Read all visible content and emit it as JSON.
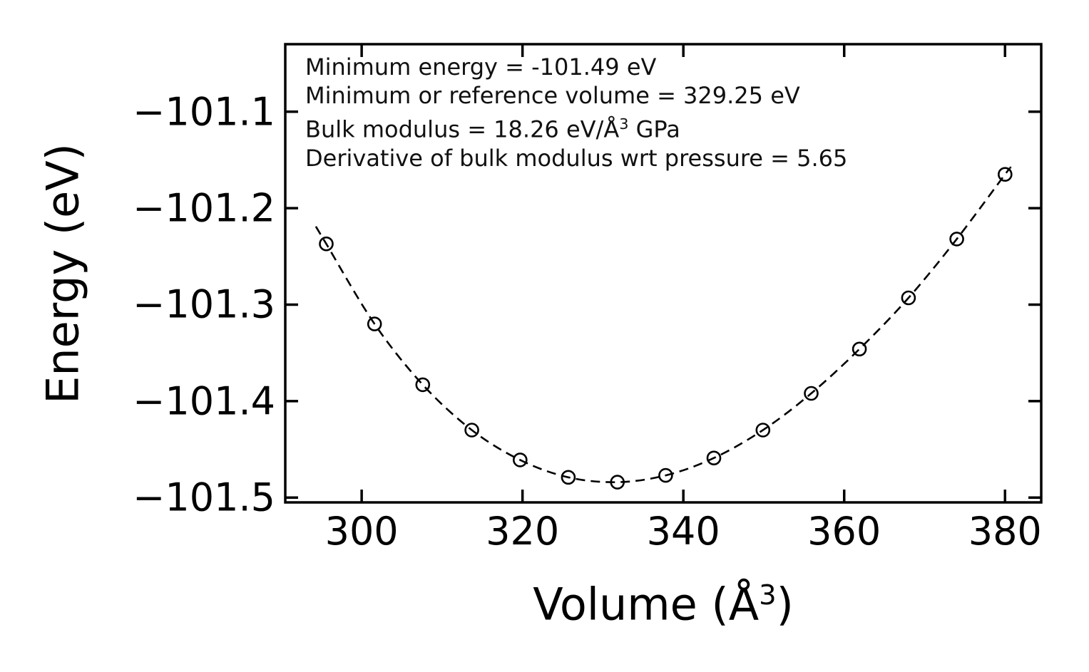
{
  "colors": {
    "background": "#ffffff",
    "axis": "#000000",
    "line": "#000000",
    "marker_edge": "#000000",
    "text": "#111111"
  },
  "chart_data": {
    "type": "line",
    "title": "",
    "xlabel": "Volume (Å³)",
    "xlabel_parts": {
      "prefix": "Volume (Å",
      "sup": "3",
      "suffix": ")"
    },
    "ylabel": "Energy (eV)",
    "xlim": [
      290.5,
      384.5
    ],
    "ylim": [
      -101.505,
      -101.03
    ],
    "grid": false,
    "legend_position": "none",
    "xticks": {
      "values": [
        300,
        320,
        340,
        360,
        380
      ],
      "labels": [
        "300",
        "320",
        "340",
        "360",
        "380"
      ]
    },
    "yticks": {
      "values": [
        -101.1,
        -101.2,
        -101.3,
        -101.4,
        -101.5
      ],
      "labels": [
        "−101.1",
        "−101.2",
        "−101.3",
        "−101.4",
        "−101.5"
      ]
    },
    "annotation": {
      "line1": "Minimum energy = -101.49 eV",
      "line2": "Minimum or reference volume = 329.25 eV",
      "line3_prefix": "Bulk modulus = 18.26 eV/Å",
      "line3_sup": "3",
      "line3_suffix": " GPa",
      "line4": "Derivative of bulk modulus wrt pressure = 5.65"
    },
    "series": [
      {
        "name": "calculated-energy-points",
        "marker": "open-circle",
        "line_style": "dashed",
        "x": [
          295.6,
          301.6,
          307.6,
          313.7,
          319.7,
          325.7,
          331.8,
          337.8,
          343.8,
          349.9,
          355.9,
          361.9,
          368.0,
          374.0,
          380.0
        ],
        "y": [
          -101.237,
          -101.32,
          -101.383,
          -101.43,
          -101.461,
          -101.479,
          -101.484,
          -101.477,
          -101.459,
          -101.43,
          -101.392,
          -101.346,
          -101.293,
          -101.232,
          -101.165
        ]
      }
    ],
    "fit_curve": {
      "name": "equation-of-state-fit",
      "x": [
        294.3,
        295.6,
        301.6,
        307.6,
        313.7,
        319.7,
        325.7,
        331.8,
        337.8,
        343.8,
        349.9,
        355.9,
        361.9,
        368.0,
        374.0,
        380.0,
        380.6
      ],
      "y": [
        -101.219,
        -101.237,
        -101.32,
        -101.383,
        -101.43,
        -101.461,
        -101.479,
        -101.484,
        -101.477,
        -101.459,
        -101.43,
        -101.392,
        -101.346,
        -101.293,
        -101.232,
        -101.165,
        -101.159
      ]
    }
  }
}
